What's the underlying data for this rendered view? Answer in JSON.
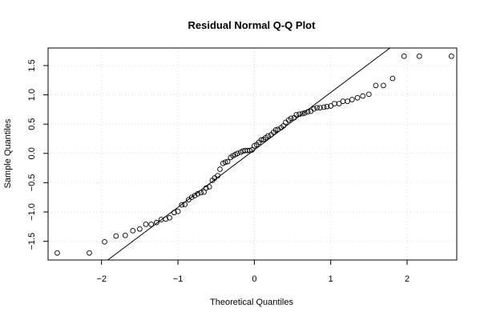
{
  "chart_data": {
    "type": "scatter",
    "title": "Residual Normal Q-Q Plot",
    "xlabel": "Theoretical Quantiles",
    "ylabel": "Sample Quantiles",
    "xlim": [
      -2.7,
      2.65
    ],
    "ylim": [
      -1.82,
      1.8
    ],
    "xticks": [
      -2,
      -1,
      0,
      1,
      2
    ],
    "xtick_labels": [
      "−2",
      "−1",
      "0",
      "1",
      "2"
    ],
    "yticks": [
      -1.5,
      -1.0,
      -0.5,
      0.0,
      0.5,
      1.0,
      1.5
    ],
    "ytick_labels": [
      "−1.5",
      "−1.0",
      "−0.5",
      "0.0",
      "0.5",
      "1.0",
      "1.5"
    ],
    "grid": true,
    "reference_line": {
      "intercept": 0.06,
      "slope": 0.98
    },
    "series": [
      {
        "x": [
          -2.58,
          -2.16,
          -1.96,
          -1.81,
          -1.69,
          -1.59,
          -1.5,
          -1.42,
          -1.35,
          -1.28,
          -1.22,
          -1.16,
          -1.11,
          -1.05,
          -1.0,
          -0.95,
          -0.91,
          -0.86,
          -0.82,
          -0.78,
          -0.74,
          -0.7,
          -0.66,
          -0.63,
          -0.59,
          -0.55,
          -0.52,
          -0.48,
          -0.45,
          -0.41,
          -0.38,
          -0.35,
          -0.31,
          -0.28,
          -0.25,
          -0.22,
          -0.18,
          -0.15,
          -0.12,
          -0.09,
          -0.06,
          -0.03,
          0.0,
          0.03,
          0.06,
          0.09,
          0.12,
          0.15,
          0.18,
          0.22,
          0.25,
          0.28,
          0.31,
          0.35,
          0.38,
          0.41,
          0.45,
          0.48,
          0.52,
          0.55,
          0.59,
          0.63,
          0.66,
          0.7,
          0.74,
          0.78,
          0.82,
          0.86,
          0.91,
          0.95,
          1.0,
          1.05,
          1.11,
          1.16,
          1.22,
          1.28,
          1.35,
          1.42,
          1.5,
          1.59,
          1.69,
          1.81,
          1.96,
          2.16,
          2.58
        ],
        "y": [
          -1.7,
          -1.7,
          -1.51,
          -1.41,
          -1.4,
          -1.32,
          -1.29,
          -1.21,
          -1.21,
          -1.18,
          -1.13,
          -1.12,
          -1.1,
          -1.01,
          -0.99,
          -0.88,
          -0.87,
          -0.79,
          -0.75,
          -0.72,
          -0.69,
          -0.67,
          -0.66,
          -0.59,
          -0.57,
          -0.46,
          -0.42,
          -0.38,
          -0.27,
          -0.17,
          -0.15,
          -0.14,
          -0.07,
          -0.04,
          -0.02,
          0.0,
          0.02,
          0.04,
          0.05,
          0.05,
          0.05,
          0.06,
          0.13,
          0.15,
          0.19,
          0.23,
          0.24,
          0.27,
          0.3,
          0.32,
          0.36,
          0.4,
          0.41,
          0.44,
          0.47,
          0.53,
          0.57,
          0.6,
          0.61,
          0.66,
          0.67,
          0.68,
          0.69,
          0.71,
          0.72,
          0.76,
          0.78,
          0.78,
          0.79,
          0.8,
          0.81,
          0.85,
          0.85,
          0.89,
          0.89,
          0.92,
          0.95,
          0.98,
          1.01,
          1.16,
          1.16,
          1.28,
          1.66,
          1.66,
          1.66
        ]
      }
    ]
  }
}
